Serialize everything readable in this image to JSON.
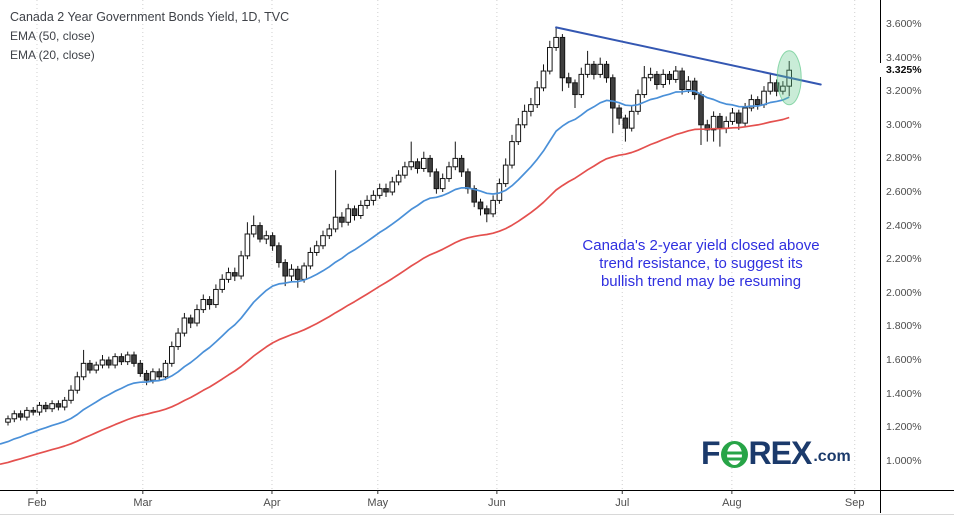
{
  "header": {
    "title": "Canada 2 Year Government Bonds Yield, 1D, TVC",
    "indicator1": "EMA (50, close)",
    "indicator2": "EMA (20, close)"
  },
  "annotation": {
    "line1": "Canada's 2-year yield closed above",
    "line2": "trend resistance, to suggest its",
    "line3": "bullish trend may be resuming",
    "color": "#2F2FDF"
  },
  "logo": {
    "pre": "F",
    "post": "REX",
    "suffix": ".com",
    "navy": "#1B3A6B",
    "green": "#27A447"
  },
  "price_label": "3.325%",
  "chart_data": {
    "type": "candlestick",
    "title": "Canada 2 Year Government Bonds Yield",
    "timeframe": "1D",
    "exchange": "TVC",
    "last_price": 3.325,
    "y_axis": {
      "min": 1.0,
      "max": 3.6,
      "tick_step": 0.2,
      "unit": "%",
      "tick_values": [
        3.6,
        3.4,
        3.2,
        3.0,
        2.8,
        2.6,
        2.4,
        2.2,
        2.0,
        1.8,
        1.6,
        1.4,
        1.2,
        1.0
      ]
    },
    "x_axis": {
      "months": [
        {
          "label": "Feb",
          "day": 4.6
        },
        {
          "label": "Mar",
          "day": 21.4
        },
        {
          "label": "Apr",
          "day": 41.9
        },
        {
          "label": "May",
          "day": 58.7
        },
        {
          "label": "Jun",
          "day": 77.6
        },
        {
          "label": "Jul",
          "day": 97.5
        },
        {
          "label": "Aug",
          "day": 114.9
        },
        {
          "label": "Sep",
          "day": 134.4
        }
      ]
    },
    "candles_ohlc": [
      [
        1.23,
        1.27,
        1.21,
        1.25
      ],
      [
        1.25,
        1.3,
        1.23,
        1.28
      ],
      [
        1.28,
        1.3,
        1.24,
        1.26
      ],
      [
        1.26,
        1.32,
        1.24,
        1.3
      ],
      [
        1.3,
        1.32,
        1.27,
        1.29
      ],
      [
        1.29,
        1.35,
        1.27,
        1.33
      ],
      [
        1.33,
        1.35,
        1.29,
        1.31
      ],
      [
        1.31,
        1.36,
        1.29,
        1.34
      ],
      [
        1.34,
        1.36,
        1.3,
        1.32
      ],
      [
        1.32,
        1.38,
        1.3,
        1.36
      ],
      [
        1.36,
        1.45,
        1.34,
        1.42
      ],
      [
        1.42,
        1.53,
        1.4,
        1.5
      ],
      [
        1.5,
        1.66,
        1.48,
        1.58
      ],
      [
        1.58,
        1.6,
        1.52,
        1.54
      ],
      [
        1.54,
        1.59,
        1.52,
        1.57
      ],
      [
        1.57,
        1.63,
        1.55,
        1.6
      ],
      [
        1.6,
        1.62,
        1.55,
        1.57
      ],
      [
        1.57,
        1.64,
        1.55,
        1.62
      ],
      [
        1.62,
        1.64,
        1.57,
        1.59
      ],
      [
        1.59,
        1.65,
        1.57,
        1.63
      ],
      [
        1.63,
        1.65,
        1.56,
        1.58
      ],
      [
        1.58,
        1.6,
        1.5,
        1.52
      ],
      [
        1.52,
        1.54,
        1.45,
        1.48
      ],
      [
        1.48,
        1.55,
        1.46,
        1.53
      ],
      [
        1.53,
        1.55,
        1.48,
        1.5
      ],
      [
        1.5,
        1.6,
        1.48,
        1.58
      ],
      [
        1.58,
        1.71,
        1.56,
        1.68
      ],
      [
        1.68,
        1.79,
        1.66,
        1.76
      ],
      [
        1.76,
        1.88,
        1.74,
        1.85
      ],
      [
        1.85,
        1.87,
        1.79,
        1.82
      ],
      [
        1.82,
        1.93,
        1.8,
        1.9
      ],
      [
        1.9,
        1.99,
        1.88,
        1.96
      ],
      [
        1.96,
        1.98,
        1.9,
        1.93
      ],
      [
        1.93,
        2.05,
        1.91,
        2.02
      ],
      [
        2.02,
        2.11,
        2.0,
        2.08
      ],
      [
        2.08,
        2.15,
        2.06,
        2.12
      ],
      [
        2.12,
        2.15,
        2.07,
        2.1
      ],
      [
        2.1,
        2.25,
        2.08,
        2.22
      ],
      [
        2.22,
        2.42,
        2.2,
        2.35
      ],
      [
        2.35,
        2.46,
        2.33,
        2.4
      ],
      [
        2.4,
        2.42,
        2.3,
        2.32
      ],
      [
        2.32,
        2.37,
        2.29,
        2.34
      ],
      [
        2.34,
        2.36,
        2.25,
        2.28
      ],
      [
        2.28,
        2.3,
        2.15,
        2.18
      ],
      [
        2.18,
        2.2,
        2.04,
        2.1
      ],
      [
        2.1,
        2.17,
        2.07,
        2.14
      ],
      [
        2.14,
        2.16,
        2.03,
        2.08
      ],
      [
        2.08,
        2.18,
        2.06,
        2.16
      ],
      [
        2.16,
        2.27,
        2.14,
        2.24
      ],
      [
        2.24,
        2.31,
        2.22,
        2.28
      ],
      [
        2.28,
        2.37,
        2.26,
        2.34
      ],
      [
        2.34,
        2.41,
        2.32,
        2.38
      ],
      [
        2.38,
        2.73,
        2.36,
        2.45
      ],
      [
        2.45,
        2.48,
        2.39,
        2.42
      ],
      [
        2.42,
        2.53,
        2.4,
        2.5
      ],
      [
        2.5,
        2.52,
        2.43,
        2.46
      ],
      [
        2.46,
        2.55,
        2.44,
        2.52
      ],
      [
        2.52,
        2.58,
        2.5,
        2.55
      ],
      [
        2.55,
        2.61,
        2.52,
        2.58
      ],
      [
        2.58,
        2.65,
        2.56,
        2.62
      ],
      [
        2.62,
        2.65,
        2.57,
        2.6
      ],
      [
        2.6,
        2.69,
        2.58,
        2.66
      ],
      [
        2.66,
        2.73,
        2.64,
        2.7
      ],
      [
        2.7,
        2.78,
        2.68,
        2.75
      ],
      [
        2.75,
        2.9,
        2.73,
        2.78
      ],
      [
        2.78,
        2.8,
        2.71,
        2.74
      ],
      [
        2.74,
        2.84,
        2.72,
        2.8
      ],
      [
        2.8,
        2.82,
        2.69,
        2.72
      ],
      [
        2.72,
        2.74,
        2.59,
        2.62
      ],
      [
        2.62,
        2.71,
        2.6,
        2.68
      ],
      [
        2.68,
        2.78,
        2.66,
        2.75
      ],
      [
        2.75,
        2.9,
        2.73,
        2.8
      ],
      [
        2.8,
        2.82,
        2.69,
        2.72
      ],
      [
        2.72,
        2.74,
        2.59,
        2.62
      ],
      [
        2.62,
        2.64,
        2.51,
        2.54
      ],
      [
        2.54,
        2.56,
        2.46,
        2.5
      ],
      [
        2.5,
        2.52,
        2.42,
        2.47
      ],
      [
        2.47,
        2.58,
        2.45,
        2.55
      ],
      [
        2.55,
        2.68,
        2.53,
        2.65
      ],
      [
        2.65,
        2.8,
        2.63,
        2.76
      ],
      [
        2.76,
        2.94,
        2.74,
        2.9
      ],
      [
        2.9,
        3.04,
        2.88,
        3.0
      ],
      [
        3.0,
        3.12,
        2.98,
        3.08
      ],
      [
        3.08,
        3.16,
        3.05,
        3.12
      ],
      [
        3.12,
        3.26,
        3.1,
        3.22
      ],
      [
        3.22,
        3.36,
        3.2,
        3.32
      ],
      [
        3.32,
        3.5,
        3.3,
        3.46
      ],
      [
        3.46,
        3.58,
        3.44,
        3.52
      ],
      [
        3.52,
        3.54,
        3.2,
        3.28
      ],
      [
        3.28,
        3.31,
        3.22,
        3.25
      ],
      [
        3.25,
        3.27,
        3.1,
        3.18
      ],
      [
        3.18,
        3.34,
        3.16,
        3.3
      ],
      [
        3.3,
        3.44,
        3.28,
        3.36
      ],
      [
        3.36,
        3.38,
        3.27,
        3.3
      ],
      [
        3.3,
        3.4,
        3.28,
        3.36
      ],
      [
        3.36,
        3.38,
        3.25,
        3.28
      ],
      [
        3.28,
        3.3,
        2.95,
        3.1
      ],
      [
        3.1,
        3.12,
        3.0,
        3.04
      ],
      [
        3.04,
        3.06,
        2.9,
        2.98
      ],
      [
        2.98,
        3.11,
        2.96,
        3.08
      ],
      [
        3.08,
        3.21,
        3.06,
        3.18
      ],
      [
        3.18,
        3.35,
        3.16,
        3.28
      ],
      [
        3.28,
        3.34,
        3.26,
        3.3
      ],
      [
        3.3,
        3.32,
        3.21,
        3.24
      ],
      [
        3.24,
        3.33,
        3.22,
        3.3
      ],
      [
        3.3,
        3.32,
        3.24,
        3.27
      ],
      [
        3.27,
        3.35,
        3.25,
        3.32
      ],
      [
        3.32,
        3.34,
        3.18,
        3.21
      ],
      [
        3.21,
        3.29,
        3.19,
        3.26
      ],
      [
        3.26,
        3.28,
        3.15,
        3.18
      ],
      [
        3.18,
        3.2,
        2.88,
        3.0
      ],
      [
        3.0,
        3.03,
        2.9,
        2.97
      ],
      [
        2.97,
        3.08,
        2.9,
        3.05
      ],
      [
        3.05,
        3.07,
        2.87,
        2.98
      ],
      [
        2.98,
        3.05,
        2.95,
        3.02
      ],
      [
        3.02,
        3.1,
        3.0,
        3.07
      ],
      [
        3.07,
        3.09,
        2.97,
        3.01
      ],
      [
        3.01,
        3.13,
        2.99,
        3.1
      ],
      [
        3.1,
        3.18,
        3.08,
        3.15
      ],
      [
        3.15,
        3.17,
        3.09,
        3.12
      ],
      [
        3.12,
        3.23,
        3.1,
        3.2
      ],
      [
        3.2,
        3.31,
        3.18,
        3.25
      ],
      [
        3.25,
        3.27,
        3.17,
        3.2
      ],
      [
        3.2,
        3.26,
        3.18,
        3.23
      ],
      [
        3.23,
        3.38,
        3.17,
        3.325
      ]
    ],
    "overlays": {
      "ema20": {
        "period": 20,
        "color": "#4A90D8",
        "start_value": 1.1
      },
      "ema50": {
        "period": 50,
        "color": "#E4504E",
        "start_value": 0.98
      },
      "trendline": {
        "from_day": 87,
        "from_value": 3.58,
        "to_day": 129,
        "to_value": 3.24,
        "color": "#3457B2"
      },
      "highlight_ellipse": {
        "day": 124,
        "value": 3.28,
        "color": "#63C98C"
      }
    },
    "candle_colors": {
      "up_fill": "#FFFFFF",
      "down_fill": "#3F3F3F",
      "outline": "#141414"
    },
    "grid": {
      "vertical_dotted": true,
      "horizontal": false
    }
  }
}
